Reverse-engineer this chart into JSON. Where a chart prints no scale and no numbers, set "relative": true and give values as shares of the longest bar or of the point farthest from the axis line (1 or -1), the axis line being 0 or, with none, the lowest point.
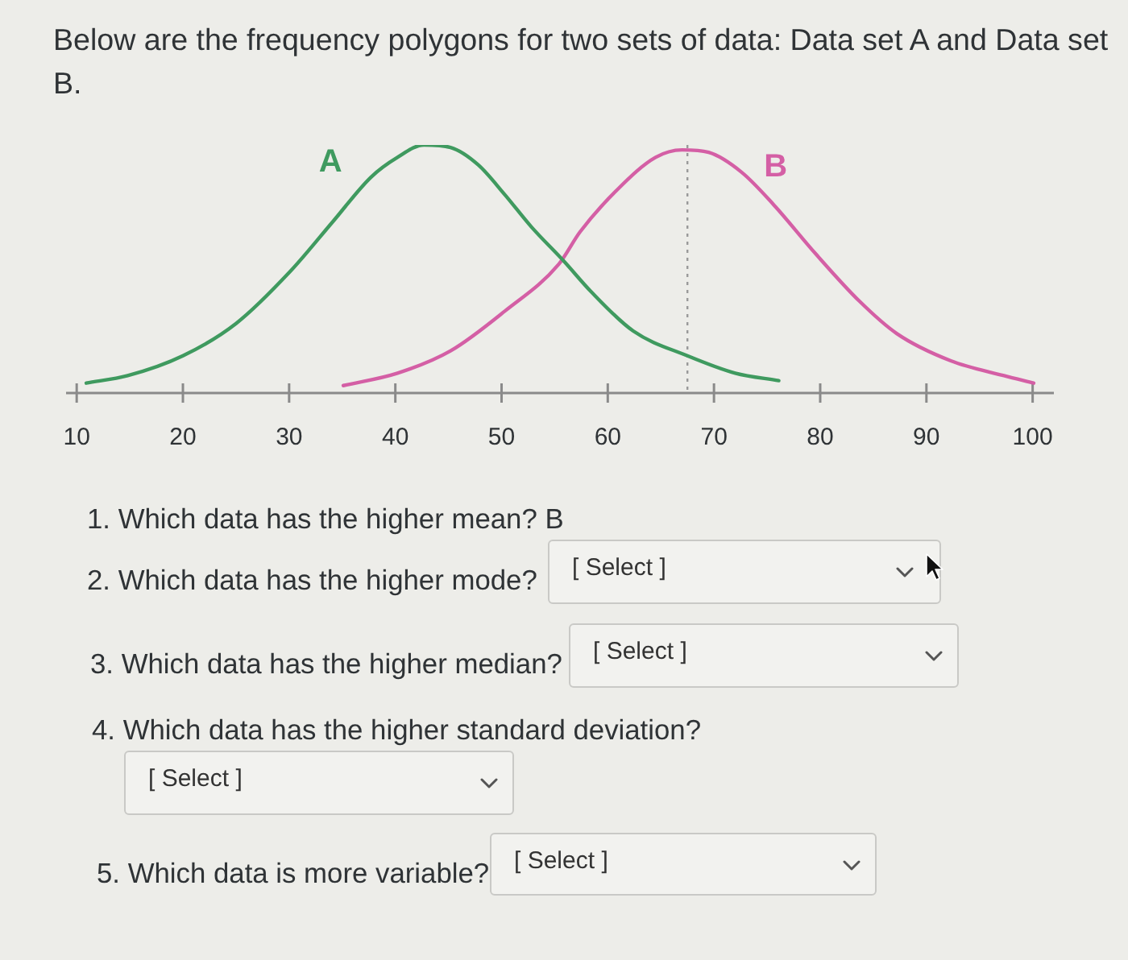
{
  "chart_data": {
    "type": "line",
    "title": "Below are the frequency polygons for two sets of data: Data set A and Data set B.",
    "relative": true,
    "xlim": [
      9,
      102
    ],
    "xticks": [
      10,
      20,
      30,
      40,
      50,
      60,
      70,
      80,
      90,
      100
    ],
    "tick_labels": "x",
    "legend": false,
    "grid": false,
    "series": [
      {
        "name": "A",
        "color": "#3f9a5f",
        "x": [
          10.9,
          14.8,
          20,
          25,
          30.1,
          34.1,
          37.7,
          40.2,
          42.7,
          45.2,
          47.8,
          50.3,
          52.8,
          55.9,
          58.4,
          62.4,
          67.5,
          72,
          76.1
        ],
        "values": [
          0.04,
          0.07,
          0.15,
          0.28,
          0.49,
          0.69,
          0.87,
          0.95,
          1,
          0.99,
          0.92,
          0.8,
          0.67,
          0.53,
          0.41,
          0.25,
          0.15,
          0.08,
          0.05
        ]
      },
      {
        "name": "B",
        "color": "#d45fa5",
        "x": [
          35.1,
          40.2,
          45.2,
          50.3,
          55.4,
          57.4,
          60.9,
          64.5,
          67,
          69.5,
          72.6,
          75.6,
          79.6,
          83.7,
          87.2,
          92.3,
          97.3,
          100.1
        ],
        "values": [
          0.03,
          0.08,
          0.17,
          0.33,
          0.52,
          0.65,
          0.82,
          0.95,
          0.98,
          0.97,
          0.89,
          0.76,
          0.56,
          0.37,
          0.24,
          0.13,
          0.07,
          0.04
        ]
      }
    ],
    "ref_lines": [
      {
        "axis": "x",
        "value": 67.5,
        "color": "#9a9a9a",
        "line_style": "dotted"
      }
    ],
    "annotations": [
      "1. Which data has the higher mean? B",
      "2. Which data has the higher mode?",
      "[ Select ]",
      "3. Which data has the higher median?",
      "[ Select ]",
      "4. Which data has the higher standard deviation?",
      "[ Select ]",
      "5. Which data is more variable?",
      "[ Select ]"
    ]
  }
}
